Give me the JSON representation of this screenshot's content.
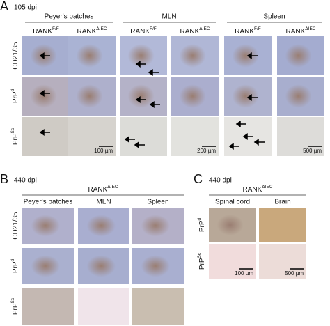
{
  "panels": [
    {
      "letter": "A",
      "timepoint": "105 dpi",
      "groups": [
        "Peyer's patches",
        "MLN",
        "Spleen"
      ],
      "columns": [
        {
          "base": "RANK",
          "sup": "F/F"
        },
        {
          "base": "RANK",
          "sup": "ΔIEC"
        },
        {
          "base": "RANK",
          "sup": "F/F"
        },
        {
          "base": "RANK",
          "sup": "ΔIEC"
        },
        {
          "base": "RANK",
          "sup": "F/F"
        },
        {
          "base": "RANK",
          "sup": "ΔIEC"
        }
      ],
      "rows": [
        {
          "base": "CD21/35"
        },
        {
          "base": "PrP",
          "sup": "d"
        },
        {
          "base": "PrP",
          "sup": "Sc"
        }
      ],
      "scale_bars": [
        "100 µm",
        "200 µm",
        "500 µm"
      ]
    },
    {
      "letter": "B",
      "timepoint": "440 dpi",
      "header": {
        "base": "RANK",
        "sup": "ΔIEC"
      },
      "groups": [
        "Peyer's patches",
        "MLN",
        "Spleen"
      ],
      "rows": [
        {
          "base": "CD21/35"
        },
        {
          "base": "PrP",
          "sup": "d"
        },
        {
          "base": "PrP",
          "sup": "Sc"
        }
      ]
    },
    {
      "letter": "C",
      "timepoint": "440 dpi",
      "header": {
        "base": "RANK",
        "sup": "ΔIEC"
      },
      "groups": [
        "Spinal cord",
        "Brain"
      ],
      "rows": [
        {
          "base": "PrP",
          "sup": "d"
        },
        {
          "base": "PrP",
          "sup": "Sc"
        }
      ],
      "scale_bars": [
        "100 µm",
        "500 µm"
      ]
    }
  ]
}
